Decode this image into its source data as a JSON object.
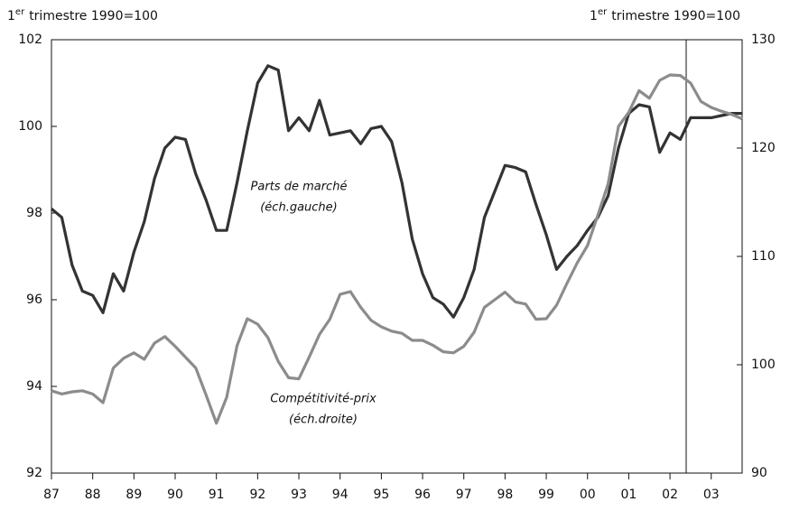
{
  "chart_data": {
    "type": "line",
    "y_unit": {
      "lead": "1",
      "sup": "er",
      "rest": "trimestre 1990=100"
    },
    "y2_unit": {
      "lead": "1",
      "sup": "er",
      "rest": "trimestre 1990=100"
    },
    "categories": [
      "87",
      null,
      null,
      null,
      "88",
      null,
      null,
      null,
      "89",
      null,
      null,
      null,
      "90",
      null,
      null,
      null,
      "91",
      null,
      null,
      null,
      "92",
      null,
      null,
      null,
      "93",
      null,
      null,
      null,
      "94",
      null,
      null,
      null,
      "95",
      null,
      null,
      null,
      "96",
      null,
      null,
      null,
      "97",
      null,
      null,
      null,
      "98",
      null,
      null,
      null,
      "99",
      null,
      null,
      null,
      "00",
      null,
      null,
      null,
      "01",
      null,
      null,
      null,
      "02",
      null,
      null,
      null,
      "03",
      null,
      null,
      null
    ],
    "ylim": [
      92,
      102
    ],
    "yticks": [
      92,
      94,
      96,
      98,
      100,
      102
    ],
    "y2lim": [
      90,
      130
    ],
    "y2ticks": [
      90,
      100,
      110,
      120,
      130
    ],
    "series": [
      {
        "name": "Parts de marché",
        "note": "(éch.gauche)",
        "color": "#333333",
        "values": [
          98.1,
          97.9,
          96.8,
          96.2,
          96.1,
          95.7,
          96.6,
          96.2,
          97.1,
          97.8,
          98.8,
          99.5,
          99.75,
          99.7,
          98.9,
          98.3,
          97.6,
          97.6,
          98.7,
          99.9,
          101.0,
          101.4,
          101.3,
          99.9,
          100.2,
          99.9,
          100.6,
          99.8,
          99.85,
          99.9,
          99.6,
          99.95,
          100.0,
          99.65,
          98.7,
          97.4,
          96.6,
          96.05,
          95.9,
          95.6,
          96.05,
          96.7,
          97.9,
          98.5,
          99.1,
          99.05,
          98.95,
          98.2,
          97.5,
          96.7,
          97.0,
          97.25,
          97.6,
          97.9,
          98.4,
          99.5,
          100.3,
          100.5,
          100.45,
          99.4,
          99.85,
          99.7,
          100.2,
          100.2,
          100.2,
          100.25,
          100.3,
          100.3
        ]
      },
      {
        "name": "Compétitivité-prix",
        "note": "(éch.droite)",
        "color": "#8c8c8c",
        "axis": "y2",
        "values": [
          97.6,
          97.3,
          97.5,
          97.6,
          97.3,
          96.5,
          99.7,
          100.6,
          101.1,
          100.5,
          102.0,
          102.6,
          101.7,
          100.7,
          99.7,
          97.2,
          94.6,
          97.0,
          101.75,
          104.25,
          103.75,
          102.5,
          100.3,
          98.8,
          98.7,
          100.7,
          102.8,
          104.2,
          106.5,
          106.75,
          105.3,
          104.1,
          103.5,
          103.1,
          102.9,
          102.25,
          102.25,
          101.8,
          101.2,
          101.1,
          101.7,
          103.0,
          105.3,
          106.0,
          106.7,
          105.8,
          105.6,
          104.2,
          104.25,
          105.5,
          107.5,
          109.4,
          111.0,
          113.8,
          116.7,
          122.0,
          123.3,
          125.3,
          124.6,
          126.25,
          126.75,
          126.7,
          126.0,
          124.3,
          123.75,
          123.4,
          123.1,
          122.7
        ]
      }
    ]
  }
}
